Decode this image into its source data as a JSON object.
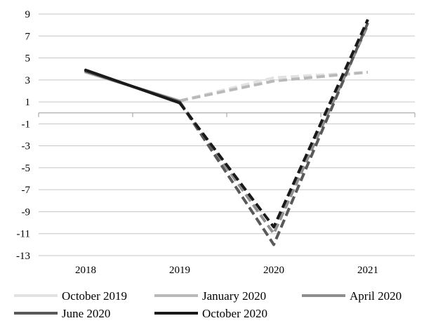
{
  "chart_data": {
    "type": "line",
    "x": [
      "2018",
      "2019",
      "2020",
      "2021"
    ],
    "ylim": [
      -13,
      9
    ],
    "yticks": [
      9,
      7,
      5,
      3,
      1,
      -1,
      -3,
      -5,
      -7,
      -9,
      -11,
      -13
    ],
    "grid": true,
    "legend_position": "bottom",
    "solid_until_index": 1,
    "series": [
      {
        "name": "October 2019",
        "color": "#e2e2e2",
        "values": [
          3.7,
          1.1,
          3.2,
          3.7
        ]
      },
      {
        "name": "January 2020",
        "color": "#b9b9b9",
        "values": [
          3.7,
          1.1,
          2.9,
          3.7
        ]
      },
      {
        "name": "April 2020",
        "color": "#8f8f8f",
        "values": [
          3.8,
          1.0,
          -11.0,
          8.0
        ]
      },
      {
        "name": "June 2020",
        "color": "#595959",
        "values": [
          3.8,
          1.0,
          -12.0,
          8.2
        ]
      },
      {
        "name": "October 2020",
        "color": "#1a1a1a",
        "values": [
          3.9,
          0.9,
          -10.4,
          8.5
        ]
      }
    ]
  }
}
